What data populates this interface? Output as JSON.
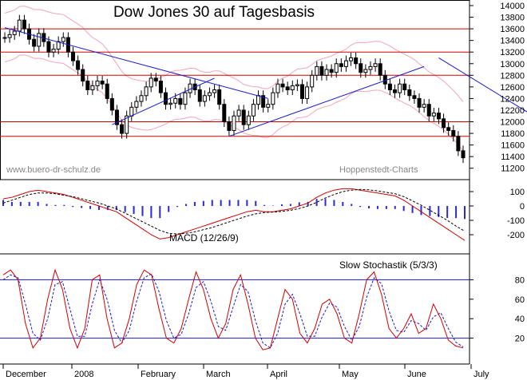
{
  "chart_data": [
    {
      "type": "candlestick",
      "title": "Dow Jones 30 auf Tagesbasis",
      "watermark_left": "www.buero-dr-schulz.de",
      "watermark_right": "Hoppenstedt-Charts",
      "ylim": [
        11100,
        14000
      ],
      "y_ticks": [
        14000,
        13800,
        13600,
        13400,
        13200,
        13000,
        12800,
        12600,
        12400,
        12200,
        12000,
        11800,
        11600,
        11400,
        11200
      ],
      "close_series": [
        13450,
        13500,
        13560,
        13750,
        13600,
        13420,
        13300,
        13520,
        13380,
        13200,
        13250,
        13380,
        13450,
        13200,
        13050,
        12900,
        12700,
        12550,
        12620,
        12700,
        12650,
        12400,
        12200,
        11950,
        11800,
        12100,
        12250,
        12350,
        12450,
        12600,
        12750,
        12700,
        12500,
        12300,
        12320,
        12400,
        12300,
        12500,
        12650,
        12550,
        12350,
        12450,
        12500,
        12550,
        12300,
        12000,
        11850,
        12100,
        12200,
        11950,
        12100,
        12300,
        12450,
        12250,
        12300,
        12500,
        12650,
        12600,
        12550,
        12620,
        12640,
        12400,
        12600,
        12800,
        12950,
        12800,
        12900,
        12850,
        13000,
        12950,
        13050,
        13100,
        13000,
        12850,
        12900,
        12950,
        13000,
        12800,
        12650,
        12550,
        12500,
        12650,
        12550,
        12450,
        12400,
        12250,
        12300,
        12100,
        12150,
        12050,
        11900,
        11850,
        11750,
        11500,
        11380
      ],
      "horizontal_lines": [
        13600,
        13200,
        12800,
        12000,
        11750
      ],
      "trendlines": [
        {
          "from": [
            0,
            13620
          ],
          "to": [
            54,
            12400
          ]
        },
        {
          "from": [
            22,
            11950
          ],
          "to": [
            43,
            12750
          ]
        },
        {
          "from": [
            46,
            11750
          ],
          "to": [
            86,
            12950
          ]
        },
        {
          "from": [
            89,
            13100
          ],
          "to": [
            111,
            11970
          ]
        }
      ],
      "x_labels": [
        "December",
        "2008",
        "February",
        "March",
        "April",
        "May",
        "June",
        "July"
      ]
    },
    {
      "type": "line",
      "title": "MACD (12/26/9)",
      "ylim": [
        -300,
        150
      ],
      "y_ticks": [
        100,
        0,
        -100,
        -200
      ],
      "series": [
        {
          "values": [
            50,
            60,
            80,
            100,
            110,
            100,
            90,
            80,
            60,
            40,
            20,
            0,
            -20,
            -40,
            -80,
            -120,
            -160,
            -200,
            -230,
            -220,
            -200,
            -180,
            -160,
            -140,
            -120,
            -100,
            -80,
            -60,
            -40,
            -30,
            -40,
            -40,
            -30,
            -20,
            0,
            20,
            60,
            90,
            110,
            120,
            120,
            110,
            100,
            90,
            80,
            70,
            40,
            0,
            -40,
            -80,
            -120,
            -160,
            -200,
            -240
          ]
        },
        {
          "values": [
            20,
            40,
            60,
            80,
            90,
            90,
            85,
            75,
            65,
            50,
            35,
            20,
            0,
            -20,
            -50,
            -80,
            -110,
            -140,
            -170,
            -190,
            -195,
            -190,
            -180,
            -165,
            -150,
            -130,
            -110,
            -90,
            -70,
            -55,
            -45,
            -42,
            -38,
            -30,
            -18,
            0,
            25,
            55,
            80,
            100,
            110,
            115,
            112,
            105,
            95,
            85,
            65,
            35,
            5,
            -30,
            -65,
            -100,
            -140,
            -175
          ]
        }
      ]
    },
    {
      "type": "line",
      "title": "Slow Stochastik (5/3/3)",
      "ylim": [
        0,
        100
      ],
      "y_ticks": [
        80,
        60,
        40,
        20
      ],
      "series": [
        {
          "values": [
            85,
            90,
            80,
            35,
            10,
            20,
            60,
            90,
            70,
            30,
            10,
            30,
            80,
            85,
            40,
            10,
            15,
            40,
            75,
            90,
            85,
            50,
            20,
            15,
            30,
            60,
            88,
            70,
            40,
            20,
            35,
            70,
            85,
            55,
            20,
            8,
            10,
            40,
            70,
            60,
            25,
            15,
            30,
            55,
            60,
            45,
            20,
            15,
            45,
            80,
            88,
            65,
            30,
            20,
            30,
            45,
            25,
            30,
            55,
            40,
            18,
            12,
            10
          ]
        },
        {
          "values": [
            80,
            85,
            82,
            55,
            25,
            18,
            40,
            75,
            78,
            50,
            22,
            22,
            55,
            80,
            60,
            28,
            15,
            28,
            58,
            82,
            86,
            68,
            38,
            20,
            24,
            45,
            72,
            78,
            58,
            32,
            28,
            52,
            75,
            68,
            38,
            15,
            10,
            25,
            55,
            65,
            45,
            22,
            22,
            42,
            56,
            52,
            32,
            18,
            32,
            62,
            82,
            76,
            48,
            28,
            26,
            38,
            35,
            28,
            42,
            46,
            30,
            16,
            11
          ]
        }
      ]
    }
  ]
}
